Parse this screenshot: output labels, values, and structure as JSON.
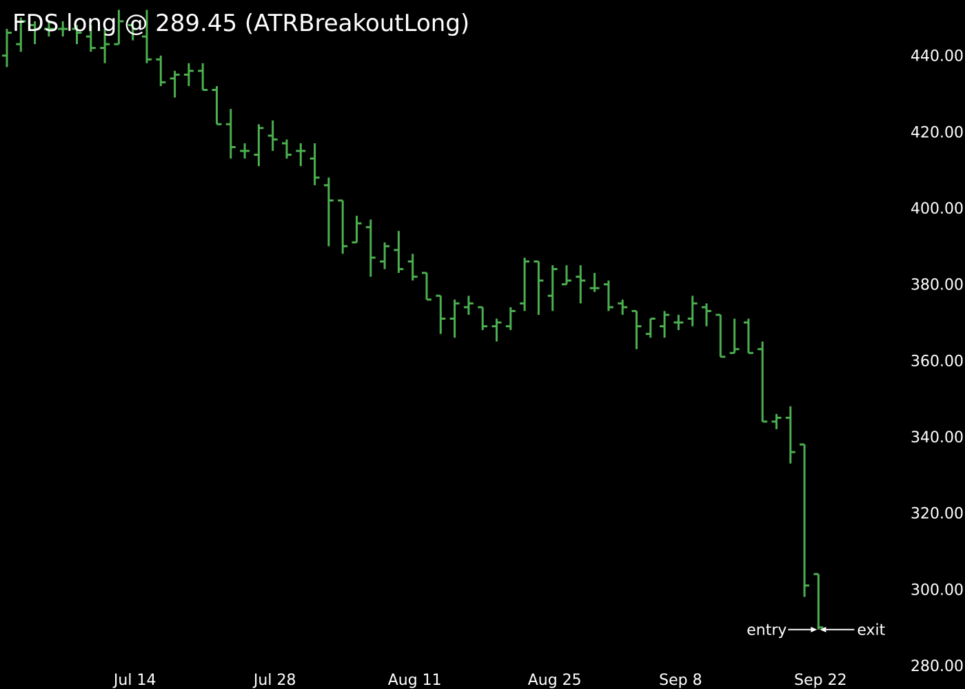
{
  "chart_data": {
    "type": "ohlc",
    "title": "FDS long @ 289.45 (ATRBreakoutLong)",
    "ylim": [
      280,
      453.5
    ],
    "y_ticks": [
      "280.00",
      "300.00",
      "320.00",
      "340.00",
      "360.00",
      "380.00",
      "400.00",
      "420.00",
      "440.00"
    ],
    "x_ticks": [
      "Jul 14",
      "Jul 28",
      "Aug 11",
      "Aug 25",
      "Sep 8",
      "Sep 22"
    ],
    "grid": false,
    "colors": {
      "background": "#000000",
      "bars": "#4caf50",
      "text": "#ffffff"
    },
    "bars": [
      {
        "date": "2025-06-30",
        "open": 440,
        "high": 447,
        "low": 437,
        "close": 446
      },
      {
        "date": "2025-07-01",
        "open": 443,
        "high": 450,
        "low": 441,
        "close": 449
      },
      {
        "date": "2025-07-02",
        "open": 448,
        "high": 449,
        "low": 443,
        "close": 447
      },
      {
        "date": "2025-07-03",
        "open": 447,
        "high": 449,
        "low": 445,
        "close": 447
      },
      {
        "date": "2025-07-07",
        "open": 447,
        "high": 449,
        "low": 445,
        "close": 447
      },
      {
        "date": "2025-07-08",
        "open": 447,
        "high": 448,
        "low": 443,
        "close": 446
      },
      {
        "date": "2025-07-09",
        "open": 445,
        "high": 448,
        "low": 441,
        "close": 442
      },
      {
        "date": "2025-07-10",
        "open": 442,
        "high": 447,
        "low": 438,
        "close": 443
      },
      {
        "date": "2025-07-11",
        "open": 443,
        "high": 452,
        "low": 443,
        "close": 449
      },
      {
        "date": "2025-07-14",
        "open": 448,
        "high": 449,
        "low": 444,
        "close": 447
      },
      {
        "date": "2025-07-15",
        "open": 445,
        "high": 452,
        "low": 438,
        "close": 439
      },
      {
        "date": "2025-07-16",
        "open": 439,
        "high": 440,
        "low": 432,
        "close": 433
      },
      {
        "date": "2025-07-17",
        "open": 434,
        "high": 436,
        "low": 429,
        "close": 435
      },
      {
        "date": "2025-07-18",
        "open": 435,
        "high": 438,
        "low": 432,
        "close": 436
      },
      {
        "date": "2025-07-21",
        "open": 436,
        "high": 438,
        "low": 431,
        "close": 431
      },
      {
        "date": "2025-07-22",
        "open": 431,
        "high": 432,
        "low": 422,
        "close": 422
      },
      {
        "date": "2025-07-23",
        "open": 422,
        "high": 426,
        "low": 413,
        "close": 416
      },
      {
        "date": "2025-07-24",
        "open": 415,
        "high": 417,
        "low": 413,
        "close": 415
      },
      {
        "date": "2025-07-25",
        "open": 414,
        "high": 422,
        "low": 411,
        "close": 421
      },
      {
        "date": "2025-07-28",
        "open": 419,
        "high": 423,
        "low": 415,
        "close": 418
      },
      {
        "date": "2025-07-29",
        "open": 417,
        "high": 418,
        "low": 413,
        "close": 414
      },
      {
        "date": "2025-07-30",
        "open": 415,
        "high": 417,
        "low": 411,
        "close": 415
      },
      {
        "date": "2025-07-31",
        "open": 413,
        "high": 417,
        "low": 406,
        "close": 408
      },
      {
        "date": "2025-08-01",
        "open": 406,
        "high": 408,
        "low": 390,
        "close": 402
      },
      {
        "date": "2025-08-04",
        "open": 402,
        "high": 402,
        "low": 388,
        "close": 390
      },
      {
        "date": "2025-08-05",
        "open": 391,
        "high": 398,
        "low": 391,
        "close": 396
      },
      {
        "date": "2025-08-06",
        "open": 395,
        "high": 397,
        "low": 382,
        "close": 387
      },
      {
        "date": "2025-08-07",
        "open": 386,
        "high": 391,
        "low": 384,
        "close": 390
      },
      {
        "date": "2025-08-08",
        "open": 389,
        "high": 394,
        "low": 383,
        "close": 384
      },
      {
        "date": "2025-08-11",
        "open": 386,
        "high": 388,
        "low": 381,
        "close": 382
      },
      {
        "date": "2025-08-12",
        "open": 383,
        "high": 383,
        "low": 376,
        "close": 376
      },
      {
        "date": "2025-08-13",
        "open": 377,
        "high": 377,
        "low": 367,
        "close": 371
      },
      {
        "date": "2025-08-14",
        "open": 371,
        "high": 376,
        "low": 366,
        "close": 375
      },
      {
        "date": "2025-08-15",
        "open": 374,
        "high": 377,
        "low": 372,
        "close": 375
      },
      {
        "date": "2025-08-18",
        "open": 374,
        "high": 374,
        "low": 368,
        "close": 369
      },
      {
        "date": "2025-08-19",
        "open": 369,
        "high": 371,
        "low": 365,
        "close": 370
      },
      {
        "date": "2025-08-20",
        "open": 369,
        "high": 374,
        "low": 368,
        "close": 373
      },
      {
        "date": "2025-08-21",
        "open": 375,
        "high": 387,
        "low": 373,
        "close": 386
      },
      {
        "date": "2025-08-22",
        "open": 386,
        "high": 386,
        "low": 372,
        "close": 381
      },
      {
        "date": "2025-08-25",
        "op": 377,
        "open": 377,
        "high": 385,
        "low": 373,
        "close": 384
      },
      {
        "date": "2025-08-26",
        "open": 380,
        "high": 385,
        "low": 380,
        "close": 381
      },
      {
        "date": "2025-08-27",
        "open": 382,
        "high": 385,
        "low": 375,
        "close": 381
      },
      {
        "date": "2025-08-28",
        "open": 379,
        "high": 383,
        "low": 378,
        "close": 379
      },
      {
        "date": "2025-08-29",
        "open": 380,
        "high": 381,
        "low": 373,
        "close": 374
      },
      {
        "date": "2025-09-02",
        "open": 375,
        "high": 376,
        "low": 372,
        "close": 374
      },
      {
        "date": "2025-09-03",
        "open": 373,
        "high": 373,
        "low": 363,
        "close": 369
      },
      {
        "date": "2025-09-04",
        "open": 367,
        "high": 371,
        "low": 366,
        "close": 371
      },
      {
        "date": "2025-09-05",
        "open": 369,
        "high": 373,
        "low": 366,
        "close": 372
      },
      {
        "date": "2025-09-08",
        "open": 370,
        "high": 372,
        "low": 368,
        "close": 370
      },
      {
        "date": "2025-09-09",
        "open": 371,
        "high": 377,
        "low": 369,
        "close": 375
      },
      {
        "date": "2025-09-10",
        "open": 374,
        "high": 375,
        "low": 369,
        "close": 373
      },
      {
        "date": "2025-09-11",
        "open": 372,
        "high": 372,
        "low": 361,
        "close": 361
      },
      {
        "date": "2025-09-12",
        "open": 362,
        "high": 371,
        "low": 362,
        "close": 363
      },
      {
        "date": "2025-09-15",
        "open": 370,
        "high": 371,
        "low": 362,
        "close": 362
      },
      {
        "date": "2025-09-16",
        "open": 363,
        "high": 365,
        "low": 344,
        "close": 344
      },
      {
        "date": "2025-09-17",
        "open": 344,
        "high": 346,
        "low": 342,
        "close": 345
      },
      {
        "date": "2025-09-18",
        "open": 345,
        "high": 348,
        "low": 333,
        "close": 336
      },
      {
        "date": "2025-09-19",
        "open": 338,
        "high": 338,
        "low": 298,
        "close": 301
      },
      {
        "date": "2025-09-22",
        "open": 304,
        "high": 304,
        "low": 289.45,
        "close": 290
      }
    ],
    "annotations": [
      {
        "label": "entry",
        "price": 289.45,
        "side": "left"
      },
      {
        "label": "exit",
        "price": 289.45,
        "side": "right"
      }
    ]
  }
}
